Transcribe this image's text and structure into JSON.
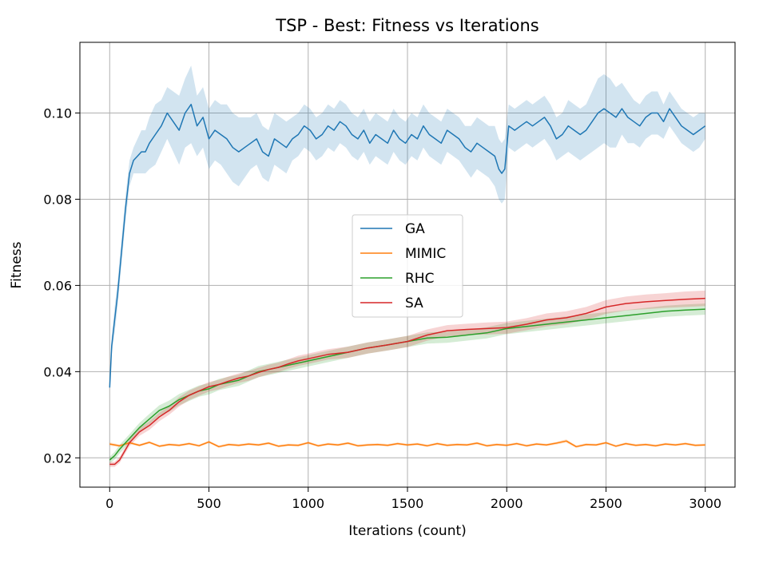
{
  "chart_data": {
    "type": "line",
    "title": "TSP - Best: Fitness vs Iterations",
    "xlabel": "Iterations (count)",
    "ylabel": "Fitness",
    "xlim": [
      -150,
      3150
    ],
    "ylim": [
      0.0132,
      0.1164
    ],
    "xticks": [
      0,
      500,
      1000,
      1500,
      2000,
      2500,
      3000
    ],
    "xtick_labels": [
      "0",
      "500",
      "1000",
      "1500",
      "2000",
      "2500",
      "3000"
    ],
    "yticks": [
      0.02,
      0.04,
      0.06,
      0.08,
      0.1
    ],
    "ytick_labels": [
      "0.02",
      "0.04",
      "0.06",
      "0.08",
      "0.10"
    ],
    "grid": true,
    "legend_position": "center",
    "series": [
      {
        "name": "GA",
        "color": "#1f77b4",
        "x": [
          0,
          10,
          25,
          40,
          60,
          80,
          100,
          120,
          140,
          160,
          180,
          200,
          230,
          260,
          290,
          320,
          350,
          380,
          410,
          440,
          470,
          500,
          530,
          560,
          590,
          620,
          650,
          680,
          710,
          740,
          770,
          800,
          830,
          860,
          890,
          920,
          950,
          980,
          1010,
          1040,
          1070,
          1100,
          1130,
          1160,
          1190,
          1220,
          1250,
          1280,
          1310,
          1340,
          1370,
          1400,
          1430,
          1460,
          1490,
          1520,
          1550,
          1580,
          1610,
          1640,
          1670,
          1700,
          1730,
          1760,
          1790,
          1820,
          1850,
          1880,
          1910,
          1940,
          1960,
          1975,
          1990,
          2010,
          2040,
          2070,
          2100,
          2130,
          2160,
          2190,
          2220,
          2250,
          2280,
          2310,
          2340,
          2370,
          2400,
          2430,
          2460,
          2490,
          2520,
          2550,
          2580,
          2610,
          2640,
          2670,
          2700,
          2730,
          2760,
          2790,
          2820,
          2850,
          2880,
          2910,
          2940,
          2970,
          3000
        ],
        "values": [
          0.0363,
          0.046,
          0.052,
          0.058,
          0.068,
          0.078,
          0.086,
          0.089,
          0.09,
          0.091,
          0.091,
          0.093,
          0.095,
          0.097,
          0.1,
          0.098,
          0.096,
          0.1,
          0.102,
          0.097,
          0.099,
          0.094,
          0.096,
          0.095,
          0.094,
          0.092,
          0.091,
          0.092,
          0.093,
          0.094,
          0.091,
          0.09,
          0.094,
          0.093,
          0.092,
          0.094,
          0.095,
          0.097,
          0.096,
          0.094,
          0.095,
          0.097,
          0.096,
          0.098,
          0.097,
          0.095,
          0.094,
          0.096,
          0.093,
          0.095,
          0.094,
          0.093,
          0.096,
          0.094,
          0.093,
          0.095,
          0.094,
          0.097,
          0.095,
          0.094,
          0.093,
          0.096,
          0.095,
          0.094,
          0.092,
          0.091,
          0.093,
          0.092,
          0.091,
          0.09,
          0.087,
          0.086,
          0.087,
          0.097,
          0.096,
          0.097,
          0.098,
          0.097,
          0.098,
          0.099,
          0.097,
          0.094,
          0.095,
          0.097,
          0.096,
          0.095,
          0.096,
          0.098,
          0.1,
          0.101,
          0.1,
          0.099,
          0.101,
          0.099,
          0.098,
          0.097,
          0.099,
          0.1,
          0.1,
          0.098,
          0.101,
          0.099,
          0.097,
          0.096,
          0.095,
          0.096,
          0.097
        ],
        "band": [
          0.0,
          0.002,
          0.003,
          0.003,
          0.003,
          0.003,
          0.003,
          0.003,
          0.004,
          0.005,
          0.005,
          0.006,
          0.007,
          0.006,
          0.006,
          0.007,
          0.008,
          0.008,
          0.009,
          0.007,
          0.007,
          0.007,
          0.007,
          0.007,
          0.008,
          0.008,
          0.008,
          0.007,
          0.006,
          0.006,
          0.006,
          0.006,
          0.006,
          0.006,
          0.006,
          0.005,
          0.005,
          0.005,
          0.005,
          0.005,
          0.005,
          0.005,
          0.005,
          0.005,
          0.005,
          0.005,
          0.005,
          0.005,
          0.005,
          0.005,
          0.005,
          0.005,
          0.005,
          0.005,
          0.005,
          0.005,
          0.005,
          0.005,
          0.005,
          0.005,
          0.005,
          0.005,
          0.005,
          0.005,
          0.005,
          0.006,
          0.006,
          0.006,
          0.006,
          0.007,
          0.007,
          0.007,
          0.007,
          0.005,
          0.005,
          0.005,
          0.005,
          0.005,
          0.005,
          0.005,
          0.005,
          0.005,
          0.005,
          0.006,
          0.006,
          0.006,
          0.006,
          0.007,
          0.008,
          0.008,
          0.008,
          0.007,
          0.006,
          0.006,
          0.005,
          0.005,
          0.005,
          0.005,
          0.005,
          0.004,
          0.004,
          0.004,
          0.004,
          0.004,
          0.004,
          0.004,
          0.003
        ]
      },
      {
        "name": "MIMIC",
        "color": "#ff7f0e",
        "x": [
          0,
          50,
          100,
          150,
          200,
          250,
          300,
          350,
          400,
          450,
          500,
          550,
          600,
          650,
          700,
          750,
          800,
          850,
          900,
          950,
          1000,
          1050,
          1100,
          1150,
          1200,
          1250,
          1300,
          1350,
          1400,
          1450,
          1500,
          1550,
          1600,
          1650,
          1700,
          1750,
          1800,
          1850,
          1900,
          1950,
          2000,
          2050,
          2100,
          2150,
          2200,
          2250,
          2300,
          2350,
          2400,
          2450,
          2500,
          2550,
          2600,
          2650,
          2700,
          2750,
          2800,
          2850,
          2900,
          2950,
          3000
        ],
        "values": [
          0.0232,
          0.0228,
          0.0235,
          0.0229,
          0.0236,
          0.0227,
          0.0231,
          0.0229,
          0.0233,
          0.0228,
          0.0237,
          0.0226,
          0.0231,
          0.0229,
          0.0232,
          0.023,
          0.0234,
          0.0227,
          0.023,
          0.0229,
          0.0235,
          0.0228,
          0.0232,
          0.023,
          0.0234,
          0.0228,
          0.023,
          0.0231,
          0.0229,
          0.0233,
          0.023,
          0.0232,
          0.0228,
          0.0233,
          0.0229,
          0.0231,
          0.023,
          0.0234,
          0.0228,
          0.0231,
          0.0229,
          0.0233,
          0.0228,
          0.0232,
          0.023,
          0.0234,
          0.0239,
          0.0226,
          0.0231,
          0.023,
          0.0235,
          0.0227,
          0.0233,
          0.0229,
          0.0231,
          0.0228,
          0.0232,
          0.023,
          0.0233,
          0.0229,
          0.023
        ],
        "band": [
          0.0004,
          0.0003,
          0.0003,
          0.0003,
          0.0003,
          0.0003,
          0.0003,
          0.0003,
          0.0003,
          0.0003,
          0.0003,
          0.0003,
          0.0003,
          0.0003,
          0.0003,
          0.0003,
          0.0003,
          0.0003,
          0.0003,
          0.0003,
          0.0003,
          0.0003,
          0.0003,
          0.0003,
          0.0003,
          0.0003,
          0.0003,
          0.0003,
          0.0003,
          0.0003,
          0.0003,
          0.0003,
          0.0003,
          0.0003,
          0.0003,
          0.0003,
          0.0003,
          0.0003,
          0.0003,
          0.0003,
          0.0003,
          0.0003,
          0.0003,
          0.0003,
          0.0003,
          0.0003,
          0.0004,
          0.0003,
          0.0003,
          0.0003,
          0.0003,
          0.0003,
          0.0003,
          0.0003,
          0.0003,
          0.0003,
          0.0003,
          0.0003,
          0.0003,
          0.0003,
          0.0003
        ]
      },
      {
        "name": "RHC",
        "color": "#2ca02c",
        "x": [
          0,
          25,
          50,
          100,
          150,
          200,
          250,
          300,
          350,
          400,
          450,
          500,
          550,
          600,
          650,
          700,
          750,
          800,
          850,
          900,
          950,
          1000,
          1100,
          1200,
          1300,
          1400,
          1500,
          1600,
          1700,
          1800,
          1900,
          2000,
          2100,
          2200,
          2300,
          2400,
          2500,
          2600,
          2700,
          2800,
          2900,
          3000
        ],
        "values": [
          0.0195,
          0.0205,
          0.022,
          0.0245,
          0.027,
          0.029,
          0.031,
          0.032,
          0.0335,
          0.0345,
          0.0355,
          0.036,
          0.037,
          0.0375,
          0.038,
          0.039,
          0.04,
          0.0405,
          0.041,
          0.0415,
          0.042,
          0.0425,
          0.0435,
          0.0445,
          0.0455,
          0.0462,
          0.047,
          0.0478,
          0.048,
          0.0485,
          0.049,
          0.05,
          0.0505,
          0.051,
          0.0515,
          0.052,
          0.0525,
          0.053,
          0.0535,
          0.054,
          0.0543,
          0.0545
        ],
        "band": [
          0.0008,
          0.0009,
          0.001,
          0.001,
          0.0011,
          0.0012,
          0.0012,
          0.0013,
          0.0013,
          0.0013,
          0.0013,
          0.0013,
          0.0013,
          0.0013,
          0.0013,
          0.0013,
          0.0013,
          0.0013,
          0.0013,
          0.0013,
          0.0013,
          0.0013,
          0.0013,
          0.0013,
          0.0013,
          0.0013,
          0.0013,
          0.0013,
          0.0013,
          0.0013,
          0.0013,
          0.0013,
          0.0013,
          0.0013,
          0.0013,
          0.0013,
          0.0013,
          0.0013,
          0.0013,
          0.0013,
          0.0013,
          0.0013
        ]
      },
      {
        "name": "SA",
        "color": "#d62728",
        "x": [
          0,
          25,
          50,
          100,
          150,
          200,
          250,
          300,
          350,
          400,
          450,
          500,
          550,
          600,
          650,
          700,
          750,
          800,
          850,
          900,
          950,
          1000,
          1100,
          1200,
          1300,
          1400,
          1500,
          1600,
          1700,
          1800,
          1900,
          2000,
          2100,
          2200,
          2300,
          2400,
          2500,
          2600,
          2700,
          2800,
          2900,
          3000
        ],
        "values": [
          0.0185,
          0.0185,
          0.0195,
          0.0235,
          0.026,
          0.0275,
          0.0295,
          0.031,
          0.033,
          0.0345,
          0.0355,
          0.0365,
          0.037,
          0.0378,
          0.0385,
          0.039,
          0.0398,
          0.0405,
          0.041,
          0.0418,
          0.0425,
          0.043,
          0.044,
          0.0445,
          0.0455,
          0.0462,
          0.047,
          0.0485,
          0.0495,
          0.0498,
          0.05,
          0.0502,
          0.051,
          0.052,
          0.0525,
          0.0535,
          0.055,
          0.0558,
          0.0562,
          0.0565,
          0.0568,
          0.057
        ],
        "band": [
          0.0006,
          0.0006,
          0.0007,
          0.0008,
          0.0009,
          0.001,
          0.001,
          0.001,
          0.0011,
          0.0011,
          0.0011,
          0.0011,
          0.0011,
          0.0011,
          0.0011,
          0.0011,
          0.0011,
          0.0011,
          0.0011,
          0.0011,
          0.0012,
          0.0012,
          0.0012,
          0.0013,
          0.0013,
          0.0013,
          0.0013,
          0.0013,
          0.0013,
          0.0013,
          0.0014,
          0.0014,
          0.0014,
          0.0015,
          0.0015,
          0.0015,
          0.0016,
          0.0016,
          0.0017,
          0.0017,
          0.0018,
          0.0018
        ]
      }
    ]
  }
}
